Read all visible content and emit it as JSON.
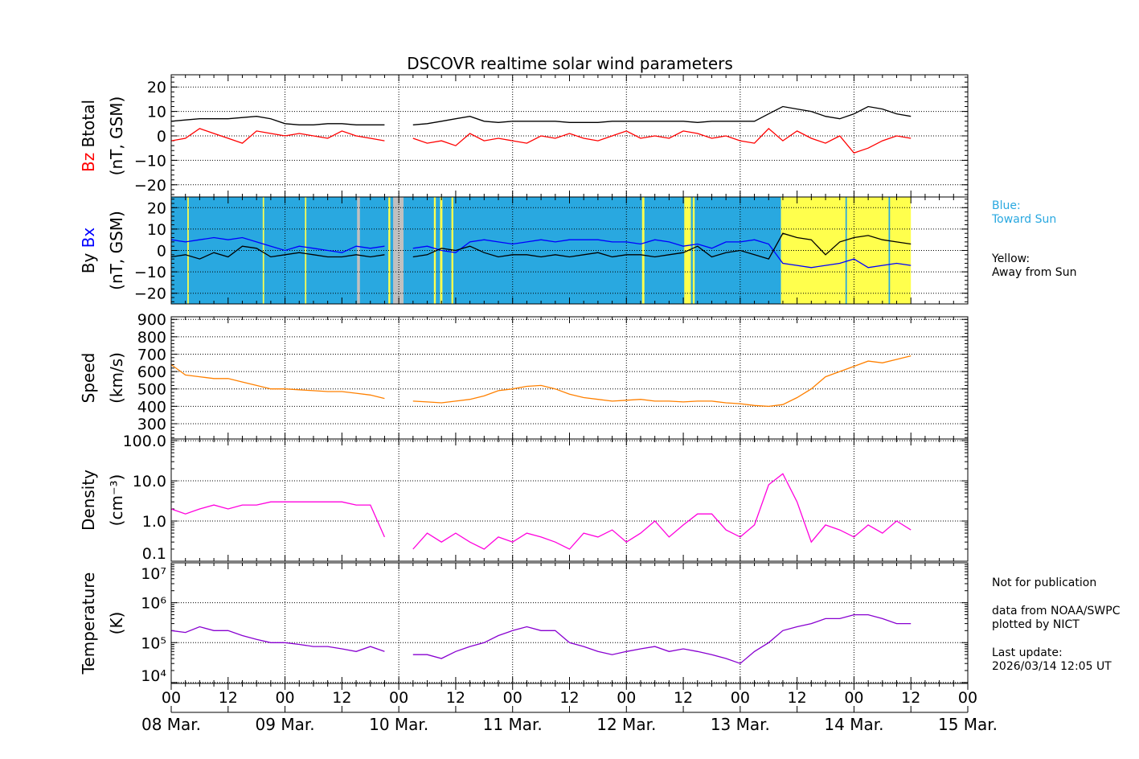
{
  "chart_data": {
    "type": "line",
    "title": "DSCOVR realtime solar wind parameters",
    "x_unit": "hours since 08 Mar. 00 UT",
    "xlim": [
      0,
      168
    ],
    "x_step_hours": 3,
    "x_tick_labels": [
      "00",
      "12",
      "00",
      "12",
      "00",
      "12",
      "00",
      "12",
      "00",
      "12",
      "00",
      "12",
      "00",
      "12",
      "00"
    ],
    "date_labels": [
      "08 Mar.",
      "09 Mar.",
      "10 Mar.",
      "11 Mar.",
      "12 Mar.",
      "13 Mar.",
      "14 Mar.",
      "15 Mar."
    ],
    "colors": {
      "btotal": "#000000",
      "bz": "#ff0000",
      "by": "#000000",
      "bx": "#0000ff",
      "speed": "#ff8000",
      "density": "#ff00dd",
      "temperature": "#8800d0",
      "toward": "#29a8e0",
      "away": "#ffff4d",
      "nodata": "#c0c0c0"
    },
    "panels": [
      {
        "id": "b",
        "ylabel_a": "Bz",
        "ylabel_b": "Btotal",
        "ylabel_unit": "(nT, GSM)",
        "ylim": [
          -25,
          25
        ],
        "ticks": [
          -20,
          -10,
          0,
          10,
          20
        ],
        "tick_labels": [
          "−20",
          "−10",
          "0",
          "10",
          "20"
        ],
        "log": false,
        "series": [
          {
            "name": "Btotal",
            "color_key": "btotal",
            "values": [
              6,
              6.5,
              7,
              7,
              7,
              7.5,
              8,
              7,
              5,
              4.5,
              4.5,
              5,
              5,
              4.5,
              4.5,
              4.5,
              null,
              4.5,
              5,
              6,
              7,
              8,
              6,
              5.5,
              6,
              6,
              6,
              6,
              5.5,
              5.5,
              5.5,
              6,
              6,
              6,
              6,
              6,
              6,
              5.5,
              6,
              6,
              6,
              6,
              9,
              12,
              11,
              10,
              8,
              7,
              9,
              12,
              11,
              9,
              8
            ]
          },
          {
            "name": "Bz",
            "color_key": "bz",
            "values": [
              -2,
              -1,
              3,
              1,
              -1,
              -3,
              2,
              1,
              0,
              1,
              0,
              -1,
              2,
              0,
              -1,
              -2,
              null,
              -1,
              -3,
              -2,
              -4,
              1,
              -2,
              -1,
              -2,
              -3,
              0,
              -1,
              1,
              -1,
              -2,
              0,
              2,
              -1,
              0,
              -1,
              2,
              1,
              -1,
              0,
              -2,
              -3,
              3,
              -2,
              2,
              -1,
              -3,
              0,
              -7,
              -5,
              -2,
              0,
              -1
            ]
          }
        ]
      },
      {
        "id": "bxy",
        "ylabel_a": "By",
        "ylabel_b": "Bx",
        "ylabel_unit": "(nT, GSM)",
        "ylim": [
          -25,
          25
        ],
        "ticks": [
          -20,
          -10,
          0,
          10,
          20
        ],
        "tick_labels": [
          "−20",
          "−10",
          "0",
          "10",
          "20"
        ],
        "log": false,
        "sectors": [
          {
            "from": 0,
            "to": 128.6,
            "kind": "toward"
          },
          {
            "from": 128.6,
            "to": 156,
            "kind": "away"
          },
          {
            "from": 39.2,
            "to": 39.8,
            "kind": "nodata"
          },
          {
            "from": 46.8,
            "to": 49,
            "kind": "nodata"
          },
          {
            "from": 3.4,
            "to": 3.7,
            "kind": "away"
          },
          {
            "from": 19.3,
            "to": 19.6,
            "kind": "away"
          },
          {
            "from": 28.2,
            "to": 28.5,
            "kind": "away"
          },
          {
            "from": 45.8,
            "to": 46.2,
            "kind": "away"
          },
          {
            "from": 55.4,
            "to": 55.8,
            "kind": "away"
          },
          {
            "from": 56.7,
            "to": 57.2,
            "kind": "away"
          },
          {
            "from": 59.1,
            "to": 59.5,
            "kind": "away"
          },
          {
            "from": 99.3,
            "to": 99.8,
            "kind": "away"
          },
          {
            "from": 108.2,
            "to": 109.6,
            "kind": "away"
          },
          {
            "from": 110,
            "to": 110.4,
            "kind": "away"
          },
          {
            "from": 142.2,
            "to": 142.5,
            "kind": "toward"
          },
          {
            "from": 151.3,
            "to": 151.6,
            "kind": "toward"
          }
        ],
        "sector_legend": {
          "toward": "Blue:\nToward Sun",
          "away": "Yellow:\nAway from Sun"
        },
        "series": [
          {
            "name": "Bx",
            "color_key": "bx",
            "values": [
              5,
              4,
              5,
              6,
              5,
              6,
              4,
              2,
              0,
              2,
              1,
              0,
              -1,
              2,
              1,
              2,
              null,
              1,
              2,
              0,
              -1,
              4,
              5,
              4,
              3,
              4,
              5,
              4,
              5,
              5,
              5,
              4,
              4,
              3,
              5,
              4,
              2,
              3,
              1,
              4,
              4,
              5,
              3,
              -6,
              -7,
              -8,
              -7,
              -6,
              -4,
              -8,
              -7,
              -6,
              -7
            ]
          },
          {
            "name": "By",
            "color_key": "by",
            "values": [
              -3,
              -2,
              -4,
              -1,
              -3,
              2,
              1,
              -3,
              -2,
              -1,
              -2,
              -3,
              -3,
              -2,
              -3,
              -2,
              null,
              -3,
              -2,
              1,
              0,
              2,
              -1,
              -3,
              -2,
              -2,
              -3,
              -2,
              -3,
              -2,
              -1,
              -3,
              -2,
              -2,
              -3,
              -2,
              -1,
              2,
              -3,
              -1,
              0,
              -2,
              -4,
              8,
              6,
              5,
              -2,
              4,
              6,
              7,
              5,
              4,
              3
            ]
          }
        ]
      },
      {
        "id": "speed",
        "ylabel_b": "Speed",
        "ylabel_unit": "(km/s)",
        "ylim": [
          212,
          915
        ],
        "ticks": [
          300,
          400,
          500,
          600,
          700,
          800,
          900
        ],
        "tick_labels": [
          "300",
          "400",
          "500",
          "600",
          "700",
          "800",
          "900"
        ],
        "log": false,
        "series": [
          {
            "name": "Speed",
            "color_key": "speed",
            "values": [
              640,
              580,
              570,
              560,
              560,
              540,
              520,
              500,
              500,
              495,
              490,
              485,
              485,
              475,
              465,
              445,
              null,
              430,
              425,
              420,
              430,
              440,
              460,
              490,
              500,
              515,
              520,
              500,
              470,
              450,
              440,
              430,
              435,
              440,
              430,
              430,
              425,
              430,
              430,
              420,
              415,
              405,
              400,
              410,
              450,
              500,
              570,
              600,
              630,
              660,
              650,
              670,
              690
            ]
          }
        ]
      },
      {
        "id": "density",
        "ylabel_b": "Density",
        "ylabel_unit": "(cm⁻³)",
        "ylim": [
          0.1,
          110
        ],
        "ticks": [
          0.1,
          1,
          10,
          100
        ],
        "tick_labels": [
          "0.1",
          "1.0",
          "10.0",
          "100.0"
        ],
        "log": true,
        "series": [
          {
            "name": "Density",
            "color_key": "density",
            "values": [
              2,
              1.5,
              2,
              2.5,
              2,
              2.5,
              2.5,
              3,
              3,
              3,
              3,
              3,
              3,
              2.5,
              2.5,
              0.4,
              null,
              0.2,
              0.5,
              0.3,
              0.5,
              0.3,
              0.2,
              0.4,
              0.3,
              0.5,
              0.4,
              0.3,
              0.2,
              0.5,
              0.4,
              0.6,
              0.3,
              0.5,
              1,
              0.4,
              0.8,
              1.5,
              1.5,
              0.6,
              0.4,
              0.8,
              8,
              15,
              3,
              0.3,
              0.8,
              0.6,
              0.4,
              0.8,
              0.5,
              1,
              0.6
            ]
          }
        ]
      },
      {
        "id": "temperature",
        "ylabel_b": "Temperature",
        "ylabel_unit": "(K)",
        "ylim": [
          9500,
          10000000
        ],
        "ticks": [
          10000,
          100000,
          1000000,
          10000000
        ],
        "tick_labels": [
          "10⁴",
          "10⁵",
          "10⁶",
          "10⁷"
        ],
        "log": true,
        "series": [
          {
            "name": "Temperature",
            "color_key": "temperature",
            "values": [
              200000,
              180000,
              250000,
              200000,
              200000,
              150000,
              120000,
              100000,
              100000,
              90000,
              80000,
              80000,
              70000,
              60000,
              80000,
              60000,
              null,
              50000,
              50000,
              40000,
              60000,
              80000,
              100000,
              150000,
              200000,
              250000,
              200000,
              200000,
              100000,
              80000,
              60000,
              50000,
              60000,
              70000,
              80000,
              60000,
              70000,
              60000,
              50000,
              40000,
              30000,
              60000,
              100000,
              200000,
              250000,
              300000,
              400000,
              400000,
              500000,
              500000,
              400000,
              300000,
              300000
            ]
          }
        ]
      }
    ]
  },
  "notes": {
    "not_for_publication": "Not for publication",
    "source": "data from NOAA/SWPC\nplotted by NICT",
    "last_update": "Last update:\n2026/03/14 12:05 UT"
  }
}
